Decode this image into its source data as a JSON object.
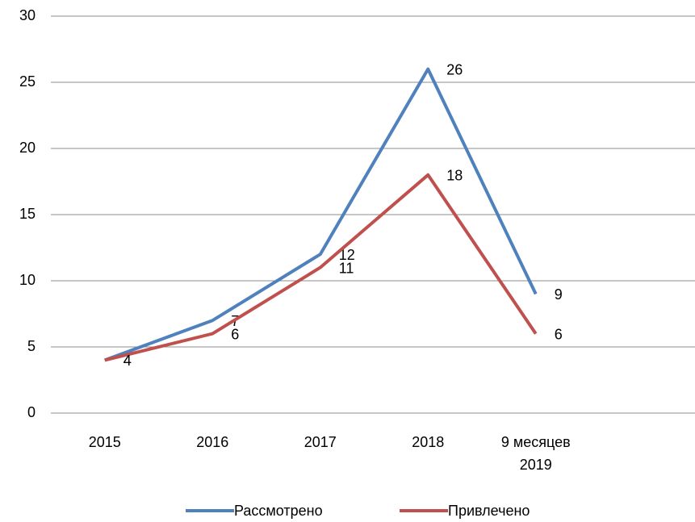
{
  "chart_data": {
    "type": "line",
    "categories": [
      "2015",
      "2016",
      "2017",
      "2018",
      "9 месяцев 2019"
    ],
    "series": [
      {
        "name": "Рассмотрено",
        "color": "#4f81bd",
        "values": [
          4,
          7,
          12,
          26,
          9
        ]
      },
      {
        "name": "Привлечено",
        "color": "#c0504d",
        "values": [
          4,
          6,
          11,
          18,
          6
        ]
      }
    ],
    "ylim": [
      0,
      30
    ],
    "yticks": [
      0,
      5,
      10,
      15,
      20,
      25,
      30
    ],
    "grid": true,
    "legend": "bottom"
  }
}
